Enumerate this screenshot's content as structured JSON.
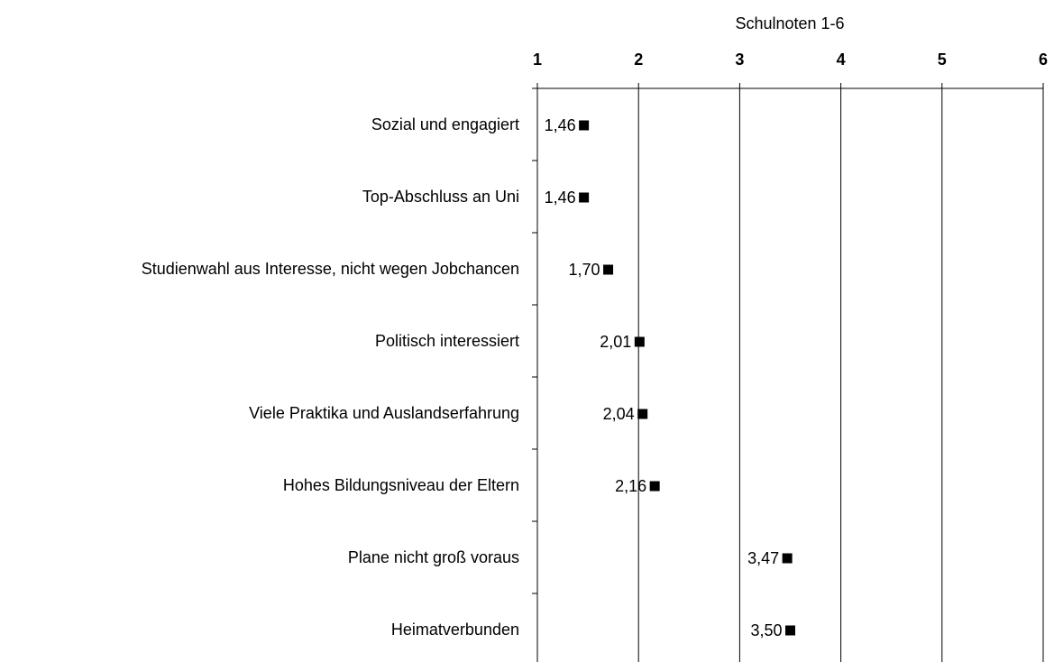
{
  "chart_data": {
    "type": "dot",
    "xlabel": "Schulnoten 1-6",
    "categories": [
      "Sozial und engagiert",
      "Top-Abschluss an Uni",
      "Studienwahl aus Interesse, nicht wegen Jobchancen",
      "Politisch interessiert",
      "Viele Praktika und Auslandserfahrung",
      "Hohes Bildungsniveau der Eltern",
      "Plane nicht groß voraus",
      "Heimatverbunden"
    ],
    "values": [
      1.46,
      1.46,
      1.7,
      2.01,
      2.04,
      2.16,
      3.47,
      3.5
    ],
    "value_labels": [
      "1,46",
      "1,46",
      "1,70",
      "2,01",
      "2,04",
      "2,16",
      "3,47",
      "3,50"
    ],
    "color": "#000000",
    "xlim": [
      1,
      6
    ],
    "xticks": [
      1,
      2,
      3,
      4,
      5,
      6
    ],
    "grid": true
  }
}
